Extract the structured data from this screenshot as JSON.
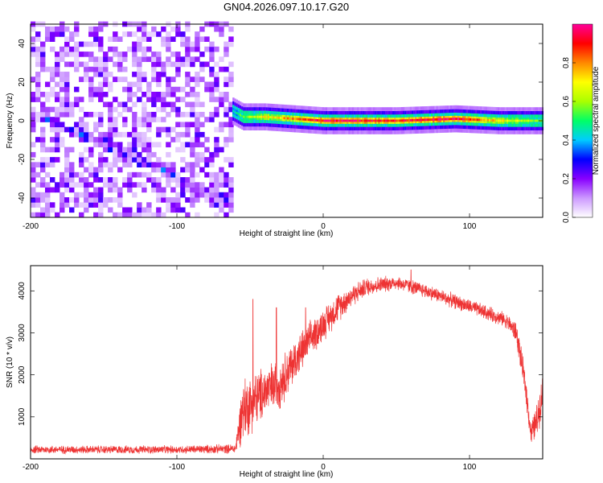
{
  "title": "GN04.2026.097.10.17.G20",
  "chart_data": [
    {
      "type": "heatmap",
      "panel": "spectrogram",
      "xlabel": "Height of straight line (km)",
      "ylabel": "Frequency (Hz)",
      "xlim": [
        -200,
        150
      ],
      "ylim": [
        -50,
        50
      ],
      "xticks": [
        -200,
        -100,
        0,
        100
      ],
      "yticks": [
        -40,
        -20,
        0,
        20,
        40
      ],
      "colorbar": {
        "label": "Normalized spectral amplitude",
        "range": [
          0,
          1
        ],
        "ticks": [
          0,
          0.2,
          0.4,
          0.6,
          0.8
        ],
        "colors": [
          "#ffffff",
          "#cc99ff",
          "#8800ff",
          "#0000ff",
          "#00ccff",
          "#00ff66",
          "#aaff00",
          "#ffff00",
          "#ff8800",
          "#ff0000",
          "#ff0099"
        ]
      },
      "noise_region": {
        "x": [
          -200,
          -63
        ],
        "amplitude": 0.25
      },
      "ridge_noise": [
        {
          "x": -200,
          "y": 3
        },
        {
          "x": -130,
          "y": -20
        },
        {
          "x": -65,
          "y": -45
        }
      ],
      "ridge_signal": [
        {
          "x": -62,
          "y": 5,
          "a": 0.45
        },
        {
          "x": -55,
          "y": 2,
          "a": 0.55
        },
        {
          "x": -40,
          "y": 2,
          "a": 0.7
        },
        {
          "x": -20,
          "y": 1,
          "a": 0.8
        },
        {
          "x": 0,
          "y": 0,
          "a": 0.95
        },
        {
          "x": 50,
          "y": 0,
          "a": 0.9
        },
        {
          "x": 90,
          "y": 1,
          "a": 0.95
        },
        {
          "x": 120,
          "y": 0,
          "a": 0.7
        },
        {
          "x": 150,
          "y": 0,
          "a": 0.55
        }
      ]
    },
    {
      "type": "line",
      "panel": "snr",
      "xlabel": "Height of straight line (km)",
      "ylabel": "SNR (10 * v/v)",
      "xlim": [
        -200,
        150
      ],
      "ylim": [
        0,
        4600
      ],
      "xticks": [
        -200,
        -100,
        0,
        100
      ],
      "yticks": [
        1000,
        2000,
        3000,
        4000
      ],
      "color": "#ee3333",
      "envelope": {
        "x": [
          -200,
          -150,
          -100,
          -60,
          -55,
          -50,
          -40,
          -30,
          -20,
          -10,
          0,
          10,
          20,
          30,
          50,
          70,
          90,
          110,
          125,
          132,
          138,
          142,
          146,
          150
        ],
        "mean": [
          220,
          220,
          220,
          240,
          1200,
          1300,
          1600,
          1800,
          2300,
          2800,
          3200,
          3600,
          3900,
          4100,
          4200,
          4000,
          3750,
          3500,
          3300,
          3000,
          1800,
          600,
          900,
          1600
        ],
        "spread": [
          110,
          110,
          110,
          130,
          900,
          800,
          700,
          700,
          600,
          500,
          450,
          400,
          300,
          250,
          200,
          200,
          200,
          200,
          200,
          300,
          400,
          300,
          500,
          500
        ]
      },
      "spikes": [
        {
          "x": -48,
          "y": 3800
        },
        {
          "x": -32,
          "y": 3600
        },
        {
          "x": -12,
          "y": 3600
        },
        {
          "x": 60,
          "y": 4500
        }
      ]
    }
  ]
}
